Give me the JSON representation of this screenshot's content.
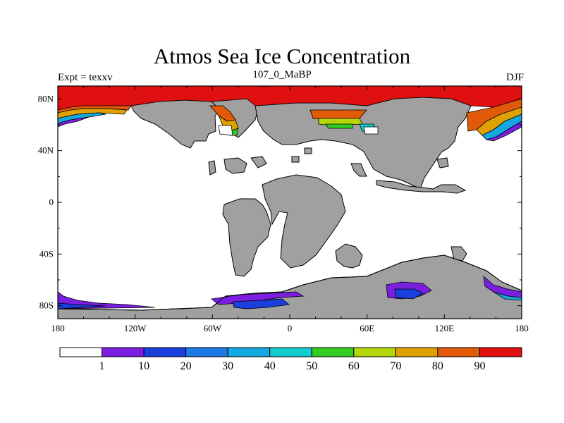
{
  "header": {
    "title": "Atmos Sea Ice Concentration",
    "subtitle_left": "Expt = texxv",
    "subtitle_center": "107_0_MaBP",
    "subtitle_right": "DJF"
  },
  "map": {
    "projection": "cylindrical-equidistant",
    "lon_range": [
      -180,
      180
    ],
    "lat_range": [
      -90,
      90
    ],
    "land_color": "#a0a0a0",
    "ocean_color": "#ffffff",
    "x_ticks": [
      {
        "lon": -180,
        "label": "180"
      },
      {
        "lon": -120,
        "label": "120W"
      },
      {
        "lon": -60,
        "label": "60W"
      },
      {
        "lon": 0,
        "label": "0"
      },
      {
        "lon": 60,
        "label": "60E"
      },
      {
        "lon": 120,
        "label": "120E"
      },
      {
        "lon": 180,
        "label": "180"
      }
    ],
    "y_ticks": [
      {
        "lat": 80,
        "label": "80N"
      },
      {
        "lat": 40,
        "label": "40N"
      },
      {
        "lat": 0,
        "label": "0"
      },
      {
        "lat": -40,
        "label": "40S"
      },
      {
        "lat": -80,
        "label": "80S"
      }
    ]
  },
  "colorbar": {
    "colors": [
      "#ffffff",
      "#7a1fe0",
      "#1a3fdc",
      "#1e78e6",
      "#14a8e0",
      "#14cccc",
      "#33cc22",
      "#b4d60a",
      "#e0a000",
      "#e05a0a",
      "#e01010"
    ],
    "labels": [
      "1",
      "10",
      "20",
      "30",
      "40",
      "50",
      "60",
      "70",
      "80",
      "90"
    ]
  }
}
